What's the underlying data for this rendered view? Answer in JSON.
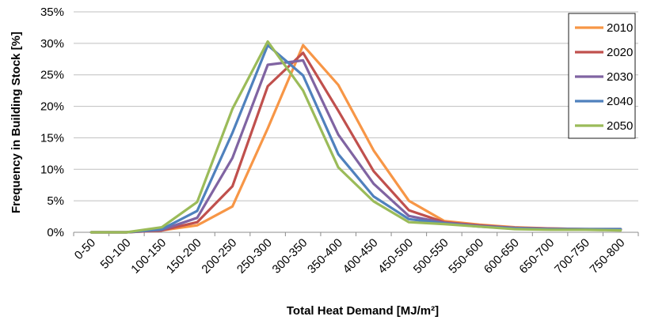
{
  "chart_data": {
    "type": "line",
    "title": "",
    "xlabel": "Total Heat Demand [MJ/m²]",
    "ylabel": "Frequency in Building Stock [%]",
    "categories": [
      "0-50",
      "50-100",
      "100-150",
      "150-200",
      "200-250",
      "250-300",
      "300-350",
      "350-400",
      "400-450",
      "450-500",
      "500-550",
      "550-600",
      "600-650",
      "650-700",
      "700-750",
      "750-800"
    ],
    "ylim": [
      0,
      35
    ],
    "yticks": [
      "0%",
      "5%",
      "10%",
      "15%",
      "20%",
      "25%",
      "30%",
      "35%"
    ],
    "grid": true,
    "legend_position": "top-right",
    "series": [
      {
        "name": "2010",
        "color": "#F79646",
        "values": [
          0,
          0,
          0.3,
          1.1,
          4.1,
          16.5,
          29.7,
          23.4,
          13.0,
          5.0,
          1.8,
          1.2,
          0.8,
          0.6,
          0.5,
          0.5
        ]
      },
      {
        "name": "2020",
        "color": "#C0504D",
        "values": [
          0,
          0,
          0.3,
          1.6,
          7.3,
          23.2,
          28.5,
          19.3,
          9.7,
          3.5,
          1.6,
          1.1,
          0.7,
          0.6,
          0.5,
          0.5
        ]
      },
      {
        "name": "2030",
        "color": "#8064A2",
        "values": [
          0,
          0,
          0.4,
          2.3,
          11.8,
          26.6,
          27.3,
          15.5,
          7.7,
          2.6,
          1.5,
          1.0,
          0.7,
          0.5,
          0.5,
          0.4
        ]
      },
      {
        "name": "2040",
        "color": "#4F81BD",
        "values": [
          0,
          0,
          0.5,
          3.4,
          15.8,
          29.7,
          24.9,
          12.4,
          5.7,
          2.1,
          1.4,
          0.9,
          0.6,
          0.5,
          0.5,
          0.5
        ]
      },
      {
        "name": "2050",
        "color": "#9BBB59",
        "values": [
          0,
          0,
          0.8,
          4.8,
          19.6,
          30.3,
          22.5,
          10.3,
          4.9,
          1.6,
          1.3,
          0.9,
          0.5,
          0.4,
          0.4,
          0.3
        ]
      }
    ]
  }
}
